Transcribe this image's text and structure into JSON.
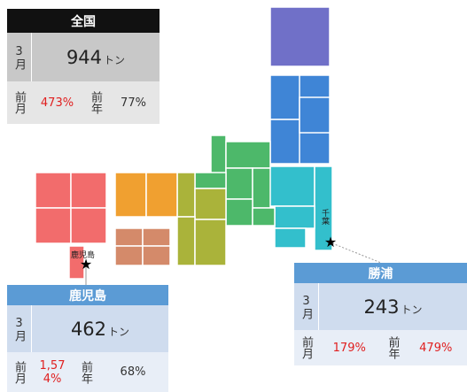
{
  "national": {
    "title": "全国",
    "month": "3月",
    "amount": "944",
    "unit": "トン",
    "prev_month_label": "前月",
    "prev_month": "473%",
    "prev_year_label": "前年",
    "prev_year": "77%"
  },
  "kagoshima": {
    "title": "鹿児島",
    "month": "3月",
    "amount": "462",
    "unit": "トン",
    "prev_month_label": "前月",
    "prev_month": "1,574%",
    "prev_year_label": "前年",
    "prev_year": "68%"
  },
  "katsuura": {
    "title": "勝浦",
    "month": "3月",
    "amount": "243",
    "unit": "トン",
    "prev_month_label": "前月",
    "prev_month": "179%",
    "prev_year_label": "前年",
    "prev_year": "479%"
  },
  "map_labels": [
    "鹿児島",
    "千葉"
  ]
}
